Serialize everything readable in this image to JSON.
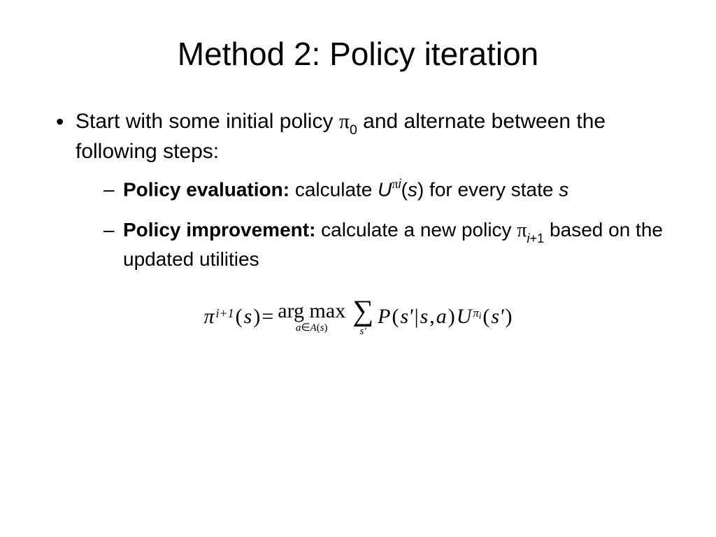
{
  "slide": {
    "title": "Method 2: Policy iteration",
    "bullet": {
      "text_before_pi": "Start with some initial policy ",
      "pi_symbol": "π",
      "pi_sub": "0",
      "text_after_pi": " and alternate between the following steps:"
    },
    "sub_bullets": [
      {
        "bold_label": "Policy evaluation:",
        "text_before_u": " calculate ",
        "u_symbol": "U",
        "u_sup_pi": "π",
        "u_sup_i": "i",
        "u_arg_open": "(",
        "u_arg_s": "s",
        "u_arg_close": ")",
        "text_after_u": " for every state ",
        "trailing_s": "s"
      },
      {
        "bold_label": "Policy improvement:",
        "text_before_pi": " calculate a new policy ",
        "pi_symbol": "π",
        "pi_sub_i": "i",
        "pi_sub_plus1": "+1",
        "text_after_pi": " based on the updated utilities"
      }
    ],
    "equation": {
      "pi": "π",
      "sup_i_plus_1": "i+1",
      "open_paren": "(",
      "s": "s",
      "close_paren": ")",
      "equals": " = ",
      "argmax": "arg max",
      "argmax_sub_a": "a",
      "argmax_sub_in": "∈",
      "argmax_sub_A": "A",
      "argmax_sub_open": "(",
      "argmax_sub_s": "s",
      "argmax_sub_close": ")",
      "sum": "∑",
      "sum_sub": "s'",
      "P": "P",
      "P_open": "(",
      "s_prime": "s'",
      "bar": "| ",
      "s_comma": "s",
      "comma": ", ",
      "a": "a",
      "P_close": ")",
      "U": "U",
      "U_sup_pi": "π",
      "U_sup_i": "i",
      "U_open": "(",
      "U_arg": "s'",
      "U_close": ")"
    }
  },
  "styling": {
    "background_color": "#ffffff",
    "text_color": "#000000",
    "title_fontsize": 46,
    "body_fontsize": 30,
    "sub_fontsize": 28,
    "equation_fontsize": 30,
    "font_family_body": "Arial",
    "font_family_math": "Times New Roman"
  }
}
